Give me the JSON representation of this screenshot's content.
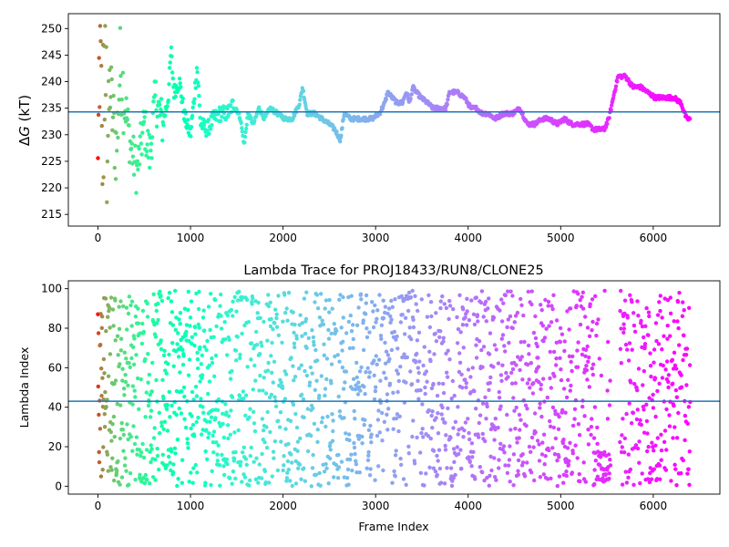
{
  "chart_data": [
    {
      "type": "scatter",
      "title": "",
      "xlabel": "",
      "ylabel": "ΔG (kT)",
      "ylabel_parts": {
        "delta": "Δ",
        "symbol": "G",
        "unit": " (kT)"
      },
      "xlim": [
        -320,
        6720
      ],
      "ylim": [
        212.8,
        252.8
      ],
      "xticks": [
        0,
        1000,
        2000,
        3000,
        4000,
        5000,
        6000
      ],
      "yticks": [
        215,
        220,
        225,
        230,
        235,
        240,
        245,
        250
      ],
      "grid": false,
      "hline": {
        "y": 234.3,
        "color": "#1f77b4"
      },
      "colormap": "rainbow (red at frame 0 → violet at final frame)",
      "points": {
        "x": "frame index 0–6400",
        "y_profile": [
          [
            0,
            220
          ],
          [
            20,
            250
          ],
          [
            40,
            228
          ],
          [
            60,
            236
          ],
          [
            80,
            244
          ],
          [
            100,
            226
          ],
          [
            130,
            240
          ],
          [
            160,
            233
          ],
          [
            200,
            227
          ],
          [
            240,
            243
          ],
          [
            300,
            235
          ],
          [
            350,
            228
          ],
          [
            420,
            223
          ],
          [
            500,
            232
          ],
          [
            560,
            226
          ],
          [
            620,
            237
          ],
          [
            700,
            232
          ],
          [
            760,
            237
          ],
          [
            790,
            246
          ],
          [
            820,
            238
          ],
          [
            880,
            240
          ],
          [
            940,
            233
          ],
          [
            1000,
            230
          ],
          [
            1040,
            237
          ],
          [
            1070,
            243
          ],
          [
            1110,
            232
          ],
          [
            1180,
            231
          ],
          [
            1250,
            233
          ],
          [
            1320,
            234
          ],
          [
            1400,
            234
          ],
          [
            1470,
            236
          ],
          [
            1540,
            233
          ],
          [
            1580,
            228
          ],
          [
            1620,
            234
          ],
          [
            1680,
            232
          ],
          [
            1740,
            235
          ],
          [
            1800,
            233
          ],
          [
            1860,
            235
          ],
          [
            1940,
            234
          ],
          [
            2020,
            233
          ],
          [
            2100,
            233
          ],
          [
            2180,
            236
          ],
          [
            2210,
            239
          ],
          [
            2260,
            234
          ],
          [
            2340,
            234
          ],
          [
            2420,
            233
          ],
          [
            2500,
            232
          ],
          [
            2560,
            231
          ],
          [
            2620,
            229
          ],
          [
            2660,
            234
          ],
          [
            2730,
            233
          ],
          [
            2800,
            233
          ],
          [
            2880,
            233
          ],
          [
            2960,
            233
          ],
          [
            3040,
            234
          ],
          [
            3100,
            236
          ],
          [
            3130,
            238
          ],
          [
            3180,
            237
          ],
          [
            3230,
            236
          ],
          [
            3290,
            236
          ],
          [
            3330,
            238
          ],
          [
            3370,
            236
          ],
          [
            3400,
            239
          ],
          [
            3440,
            238
          ],
          [
            3490,
            237
          ],
          [
            3560,
            236
          ],
          [
            3620,
            235
          ],
          [
            3700,
            235
          ],
          [
            3760,
            235
          ],
          [
            3800,
            238
          ],
          [
            3880,
            238
          ],
          [
            3960,
            237
          ],
          [
            4030,
            235
          ],
          [
            4090,
            235
          ],
          [
            4150,
            234
          ],
          [
            4220,
            234
          ],
          [
            4290,
            233
          ],
          [
            4380,
            234
          ],
          [
            4480,
            234
          ],
          [
            4560,
            235
          ],
          [
            4640,
            232
          ],
          [
            4720,
            232
          ],
          [
            4800,
            233
          ],
          [
            4880,
            233
          ],
          [
            4960,
            232
          ],
          [
            5040,
            233
          ],
          [
            5120,
            232
          ],
          [
            5200,
            232
          ],
          [
            5290,
            232
          ],
          [
            5360,
            231
          ],
          [
            5420,
            231
          ],
          [
            5470,
            231
          ],
          [
            5520,
            233
          ],
          [
            5580,
            238
          ],
          [
            5620,
            241
          ],
          [
            5700,
            241
          ],
          [
            5780,
            239
          ],
          [
            5860,
            239
          ],
          [
            5940,
            238
          ],
          [
            6020,
            237
          ],
          [
            6120,
            237
          ],
          [
            6220,
            237
          ],
          [
            6300,
            236
          ],
          [
            6360,
            233
          ],
          [
            6400,
            233
          ]
        ]
      }
    },
    {
      "type": "scatter",
      "title": "Lambda Trace for PROJ18433/RUN8/CLONE25",
      "xlabel": "Frame Index",
      "ylabel": "Lambda Index",
      "xlim": [
        -320,
        6720
      ],
      "ylim": [
        -4,
        104
      ],
      "xticks": [
        0,
        1000,
        2000,
        3000,
        4000,
        5000,
        6000
      ],
      "yticks": [
        0,
        20,
        40,
        60,
        80,
        100
      ],
      "grid": false,
      "hline": {
        "y": 43,
        "color": "#1f77b4"
      },
      "colormap": "rainbow (red at frame 0 → violet at final frame)",
      "points": {
        "x": "frame index 0–6400",
        "y_range": [
          0,
          99
        ],
        "gaps": [
          [
            5540,
            5640
          ]
        ],
        "dense_low_band": [
          5400,
          5550
        ]
      }
    }
  ],
  "colors": {
    "axis": "#000000",
    "hline": "#1f77b4"
  },
  "labels": {
    "xtick_labels": [
      "0",
      "1000",
      "2000",
      "3000",
      "4000",
      "5000",
      "6000"
    ],
    "top_ytick_labels": [
      "215",
      "220",
      "225",
      "230",
      "235",
      "240",
      "245",
      "250"
    ],
    "bottom_ytick_labels": [
      "0",
      "20",
      "40",
      "60",
      "80",
      "100"
    ]
  }
}
